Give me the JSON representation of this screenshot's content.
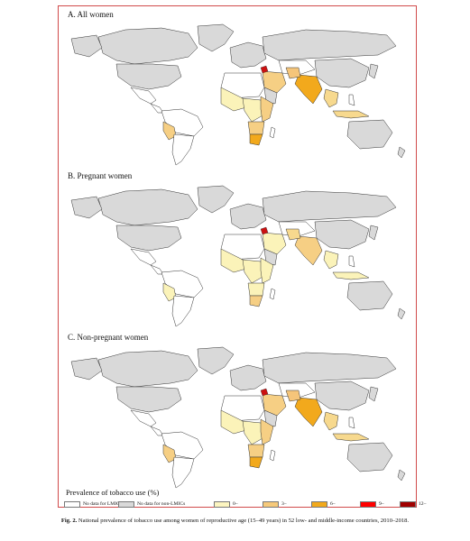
{
  "panels": [
    {
      "title": "A. All women",
      "fills": {
        "asia": "#f5c57a",
        "asia_south": "#f2a91c",
        "se_asia": "#f7d98e",
        "africa_w": "#fbf3b9",
        "africa_c": "#fbf3b9",
        "africa_e": "#f6cf84",
        "africa_s": "#f2a91c",
        "s_america": "#f6cf84",
        "mideast": "#f6cf84",
        "red_spot": "#cc1111"
      }
    },
    {
      "title": "B. Pregnant women",
      "fills": {
        "asia": "#f7d98e",
        "asia_south": "#f6cf84",
        "se_asia": "#fbf3b9",
        "africa_w": "#fbf3b9",
        "africa_c": "#fbf3b9",
        "africa_e": "#fbf3b9",
        "africa_s": "#f6cf84",
        "s_america": "#fbf3b9",
        "mideast": "#fbf3b9",
        "red_spot": "#cc1111"
      }
    },
    {
      "title": "C. Non-pregnant women",
      "fills": {
        "asia": "#f5c57a",
        "asia_south": "#f2a91c",
        "se_asia": "#f7d98e",
        "africa_w": "#fbf3b9",
        "africa_c": "#fbf3b9",
        "africa_e": "#f6cf84",
        "africa_s": "#f2a91c",
        "s_america": "#f6cf84",
        "mideast": "#f6cf84",
        "red_spot": "#cc1111"
      }
    }
  ],
  "legend": {
    "title": "Prevalence of tobacco use (%)",
    "items": [
      {
        "label": "No data for LMICs",
        "color": "#ffffff"
      },
      {
        "label": "No data for non-LMICs",
        "color": "#d9d9d9"
      },
      {
        "label": "0–",
        "color": "#fcf5c0"
      },
      {
        "label": "3–",
        "color": "#f6c97a"
      },
      {
        "label": "6–",
        "color": "#f2a91c"
      },
      {
        "label": "9–",
        "color": "#ff0000"
      },
      {
        "label": "12–",
        "color": "#a10000"
      }
    ]
  },
  "caption": {
    "label": "Fig. 2.",
    "text": "National prevalence of tobacco use among women of reproductive age (15–49 years) in 52 low- and middle-income countries, 2010–2018."
  }
}
